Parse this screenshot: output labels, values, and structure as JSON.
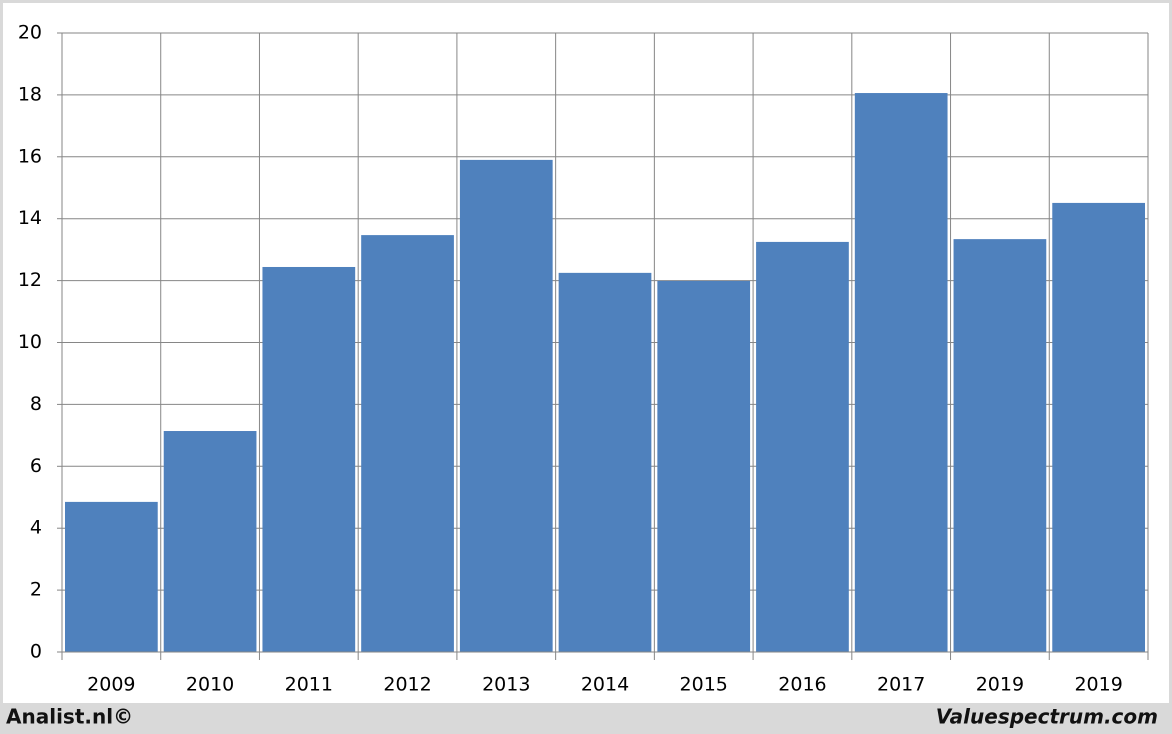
{
  "chart_data": {
    "type": "bar",
    "categories": [
      "2009",
      "2010",
      "2011",
      "2012",
      "2013",
      "2014",
      "2015",
      "2016",
      "2017",
      "2019",
      "2019"
    ],
    "values": [
      4.85,
      7.14,
      12.44,
      13.47,
      15.9,
      12.25,
      11.99,
      13.25,
      18.06,
      13.34,
      14.51
    ],
    "color": "#4f81bd",
    "ylim": [
      0,
      20
    ],
    "yticks": [
      0,
      2,
      4,
      6,
      8,
      10,
      12,
      14,
      16,
      18,
      20
    ],
    "grid": true
  },
  "footer": {
    "left": "Analist.nl©",
    "right": "Valuespectrum.com"
  }
}
